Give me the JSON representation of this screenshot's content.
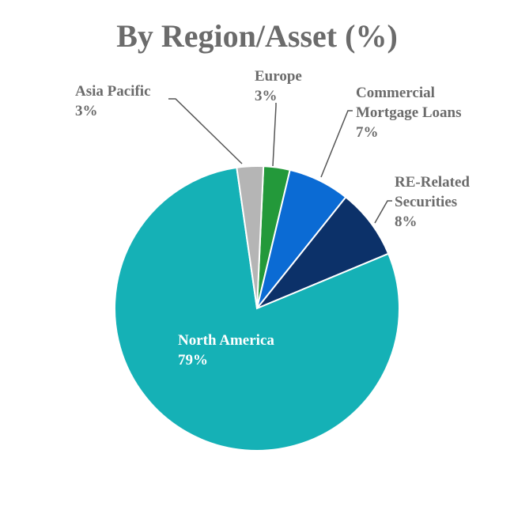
{
  "chart_data": {
    "type": "pie",
    "title": "By Region/Asset (%)",
    "categories": [
      "Europe",
      "Commercial Mortgage Loans",
      "RE-Related Securities",
      "North America",
      "Asia Pacific"
    ],
    "values": [
      3,
      7,
      8,
      79,
      3
    ],
    "value_labels": [
      "3%",
      "7%",
      "8%",
      "79%",
      "3%"
    ],
    "colors": [
      "#23993a",
      "#0b6bd4",
      "#0c3169",
      "#15b1b6",
      "#b5b5b5"
    ]
  }
}
